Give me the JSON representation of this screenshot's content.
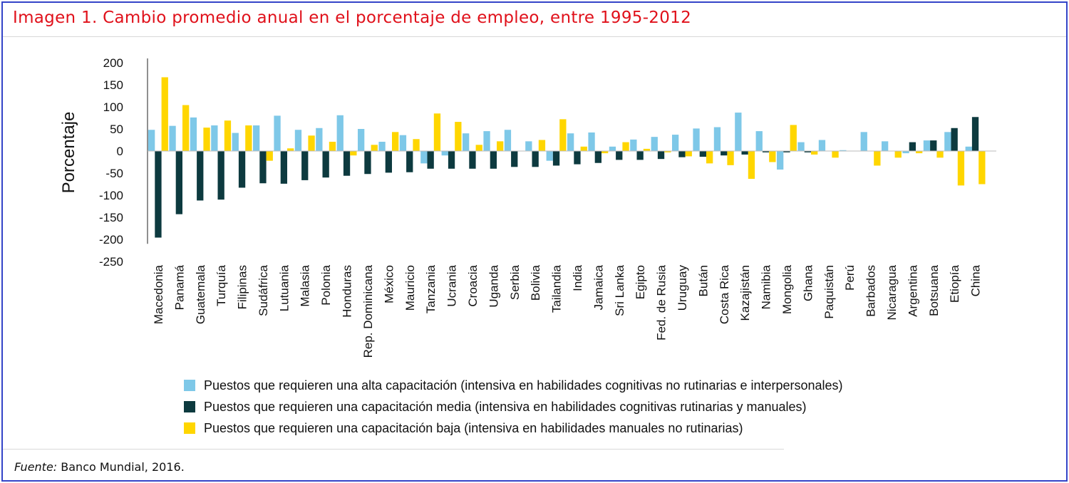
{
  "title": "Imagen 1. Cambio promedio anual en el porcentaje de empleo, entre 1995-2012",
  "source": {
    "label": "Fuente:",
    "text": " Banco Mundial, 2016."
  },
  "colors": {
    "alta": "#7ec8e8",
    "media": "#0d3a3f",
    "baja": "#ffd600",
    "title": "#e0101a",
    "frame": "#3344c8"
  },
  "chart_data": {
    "type": "bar",
    "ylabel": "Porcentaje",
    "ylim": [
      -250,
      200
    ],
    "yticks": [
      200,
      150,
      100,
      50,
      0,
      -50,
      -100,
      -150,
      -200,
      -250
    ],
    "categories": [
      "Macedonia",
      "Panamá",
      "Guatemala",
      "Turquía",
      "Filipinas",
      "Sudáfrica",
      "Lutuania",
      "Malasia",
      "Polonia",
      "Honduras",
      "Rep. Dominicana",
      "México",
      "Mauricio",
      "Tanzania",
      "Ucrania",
      "Croacia",
      "Uganda",
      "Serbia",
      "Bolivia",
      "Tailandia",
      "India",
      "Jamaica",
      "Sri Lanka",
      "Egipto",
      "Fed. de Rusia",
      "Uruguay",
      "Bután",
      "Costa Rica",
      "Kazajistán",
      "Namibia",
      "Mongolia",
      "Ghana",
      "Paquistán",
      "Perú",
      "Barbados",
      "Nicaragua",
      "Argentina",
      "Botsuana",
      "Etiopía",
      "China"
    ],
    "series": [
      {
        "name": "Puestos que requieren una alta capacitación (intensiva en habilidades cognitivas no rutinarias e interpersonales)",
        "values": [
          48,
          57,
          76,
          58,
          41,
          58,
          80,
          48,
          52,
          81,
          50,
          21,
          36,
          -28,
          -10,
          40,
          45,
          48,
          22,
          -22,
          40,
          42,
          10,
          26,
          32,
          37,
          51,
          54,
          87,
          45,
          -42,
          20,
          25,
          2,
          43,
          22,
          -5,
          24,
          43,
          10
        ]
      },
      {
        "name": "Puestos que requieren una capacitación media (intensiva en habilidades cognitivas rutinarias y manuales)",
        "values": [
          -196,
          -143,
          -112,
          -110,
          -83,
          -73,
          -74,
          -66,
          -60,
          -56,
          -52,
          -49,
          -48,
          -40,
          -40,
          -40,
          -40,
          -36,
          -36,
          -33,
          -30,
          -27,
          -20,
          -20,
          -18,
          -14,
          -13,
          -10,
          -8,
          -3,
          -3,
          -3,
          0,
          0,
          0,
          0,
          20,
          24,
          52,
          77
        ]
      },
      {
        "name": "Puestos que requieren una capacitación baja (intensiva en habilidades manuales no rutinarias)",
        "values": [
          167,
          104,
          53,
          69,
          58,
          -22,
          6,
          35,
          21,
          -10,
          14,
          43,
          27,
          85,
          66,
          14,
          22,
          0,
          25,
          72,
          10,
          -5,
          20,
          5,
          -3,
          -12,
          -28,
          -32,
          -63,
          -25,
          59,
          -8,
          -15,
          0,
          -33,
          -15,
          -5,
          -15,
          -78,
          -75
        ]
      }
    ]
  }
}
